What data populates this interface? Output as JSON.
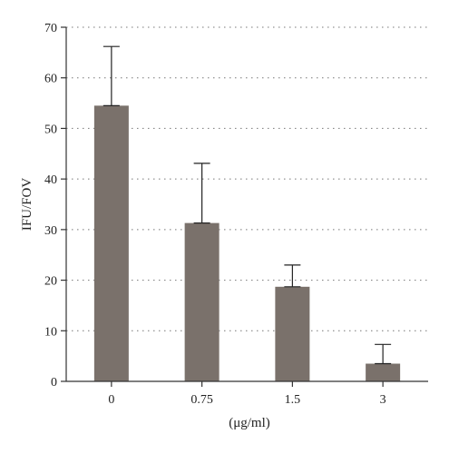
{
  "chart_data": {
    "type": "bar",
    "title": "",
    "xlabel": "(μg/ml)",
    "ylabel": "IFU/FOV",
    "categories": [
      "0",
      "0.75",
      "1.5",
      "3"
    ],
    "values": [
      54.5,
      31.3,
      18.7,
      3.5
    ],
    "error_upper": [
      66.2,
      43.1,
      23.0,
      7.3
    ],
    "ylim": [
      0,
      70
    ],
    "yticks": [
      0,
      10,
      20,
      30,
      40,
      50,
      60,
      70
    ],
    "grid": "dotted horizontal",
    "bar_color": "#7a716b"
  }
}
